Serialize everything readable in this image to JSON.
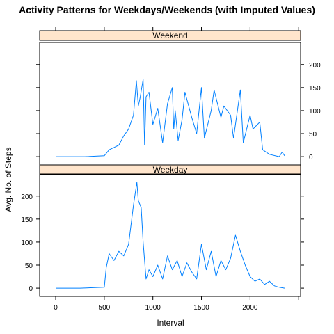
{
  "chart_data": {
    "type": "line",
    "title": "Activity Patterns for Weekdays/Weekends (with Imputed Values)",
    "xlabel": "Interval",
    "ylabel": "Avg. No. of Steps",
    "xlim": [
      -165,
      2520
    ],
    "ylim": [
      -18,
      248
    ],
    "xticks": [
      0,
      500,
      1000,
      1500,
      2000
    ],
    "yticks": [
      0,
      50,
      100,
      150,
      200
    ],
    "line_color": "#0080ff",
    "strip_color": "#ffe5cc",
    "panels": [
      {
        "name": "Weekend",
        "x": [
          0,
          300,
          500,
          550,
          600,
          650,
          700,
          750,
          800,
          830,
          850,
          870,
          900,
          915,
          930,
          960,
          1000,
          1050,
          1100,
          1150,
          1200,
          1215,
          1230,
          1260,
          1300,
          1330,
          1400,
          1450,
          1500,
          1530,
          1600,
          1630,
          1700,
          1730,
          1800,
          1830,
          1900,
          1930,
          2000,
          2030,
          2100,
          2130,
          2200,
          2300,
          2330,
          2355
        ],
        "y": [
          0,
          0,
          2,
          15,
          20,
          25,
          45,
          60,
          90,
          165,
          110,
          130,
          168,
          25,
          130,
          140,
          70,
          105,
          30,
          115,
          150,
          60,
          100,
          35,
          80,
          140,
          85,
          50,
          150,
          40,
          100,
          145,
          85,
          110,
          90,
          40,
          145,
          30,
          90,
          60,
          75,
          15,
          5,
          0,
          10,
          2
        ]
      },
      {
        "name": "Weekday",
        "x": [
          0,
          250,
          500,
          520,
          550,
          600,
          650,
          700,
          750,
          800,
          835,
          850,
          880,
          900,
          930,
          960,
          1000,
          1050,
          1100,
          1150,
          1200,
          1250,
          1300,
          1350,
          1400,
          1450,
          1500,
          1550,
          1600,
          1650,
          1700,
          1750,
          1800,
          1850,
          1900,
          1950,
          2000,
          2050,
          2100,
          2150,
          2200,
          2250,
          2300,
          2355
        ],
        "y": [
          0,
          0,
          2,
          45,
          75,
          60,
          80,
          70,
          95,
          180,
          230,
          190,
          175,
          100,
          20,
          40,
          25,
          50,
          20,
          70,
          40,
          60,
          25,
          55,
          35,
          20,
          95,
          40,
          80,
          25,
          60,
          40,
          65,
          115,
          80,
          50,
          25,
          15,
          20,
          8,
          15,
          5,
          2,
          0
        ]
      }
    ]
  }
}
